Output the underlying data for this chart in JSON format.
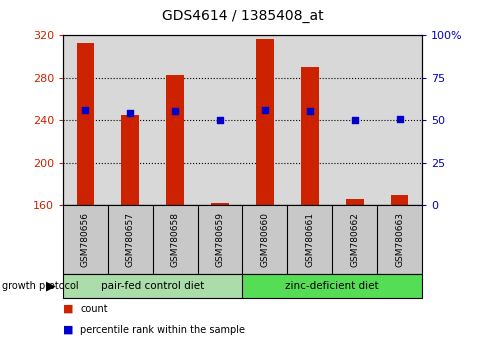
{
  "title": "GDS4614 / 1385408_at",
  "samples": [
    "GSM780656",
    "GSM780657",
    "GSM780658",
    "GSM780659",
    "GSM780660",
    "GSM780661",
    "GSM780662",
    "GSM780663"
  ],
  "counts": [
    313,
    245,
    283,
    162,
    317,
    290,
    166,
    170
  ],
  "percentiles": [
    250,
    247,
    249,
    240,
    250,
    249,
    240,
    241
  ],
  "ylim": [
    160,
    320
  ],
  "right_ylim": [
    0,
    100
  ],
  "yticks_left": [
    160,
    200,
    240,
    280,
    320
  ],
  "yticks_right": [
    0,
    25,
    50,
    75,
    100
  ],
  "yticks_right_labels": [
    "0",
    "25",
    "50",
    "75",
    "100%"
  ],
  "bar_color": "#cc2200",
  "dot_color": "#0000cc",
  "group1_label": "pair-fed control diet",
  "group2_label": "zinc-deficient diet",
  "group1_color": "#aaddaa",
  "group2_color": "#55dd55",
  "group_label": "growth protocol",
  "legend_count": "count",
  "legend_percentile": "percentile rank within the sample",
  "bar_width": 0.4,
  "plot_bg_color": "#d8d8d8",
  "label_bg_color": "#c8c8c8"
}
